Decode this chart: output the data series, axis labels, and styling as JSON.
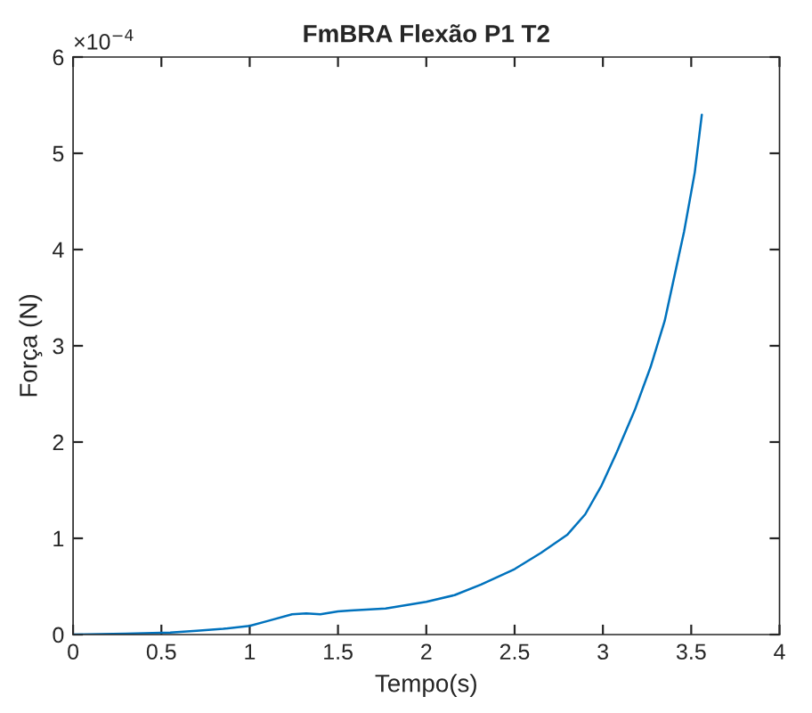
{
  "chart_data": {
    "type": "line",
    "title": "FmBRA Flexão P1 T2",
    "xlabel": "Tempo(s)",
    "ylabel": "Força (N)",
    "annotations": [
      "×10$^{−4}$"
    ],
    "x": [
      0,
      0.3,
      0.55,
      0.7,
      0.85,
      1.0,
      1.1,
      1.24,
      1.32,
      1.4,
      1.5,
      1.57,
      1.77,
      2.0,
      2.16,
      2.31,
      2.5,
      2.65,
      2.8,
      2.9,
      2.99,
      3.08,
      3.18,
      3.27,
      3.35,
      3.46,
      3.52,
      3.56
    ],
    "series": [
      {
        "color": "#0072bd",
        "values": [
          0,
          0.01,
          0.02,
          0.04,
          0.06,
          0.09,
          0.14,
          0.21,
          0.22,
          0.21,
          0.24,
          0.25,
          0.27,
          0.34,
          0.41,
          0.52,
          0.68,
          0.85,
          1.04,
          1.25,
          1.54,
          1.9,
          2.33,
          2.78,
          3.26,
          4.19,
          4.8,
          5.4
        ]
      }
    ],
    "xlim": [
      0,
      4
    ],
    "xticks": [
      0,
      0.5,
      1,
      1.5,
      2,
      2.5,
      3,
      3.5,
      4
    ],
    "ylim": [
      0,
      6
    ],
    "yticks": [
      0,
      1,
      2,
      3,
      4,
      5,
      6
    ],
    "grid": false
  }
}
